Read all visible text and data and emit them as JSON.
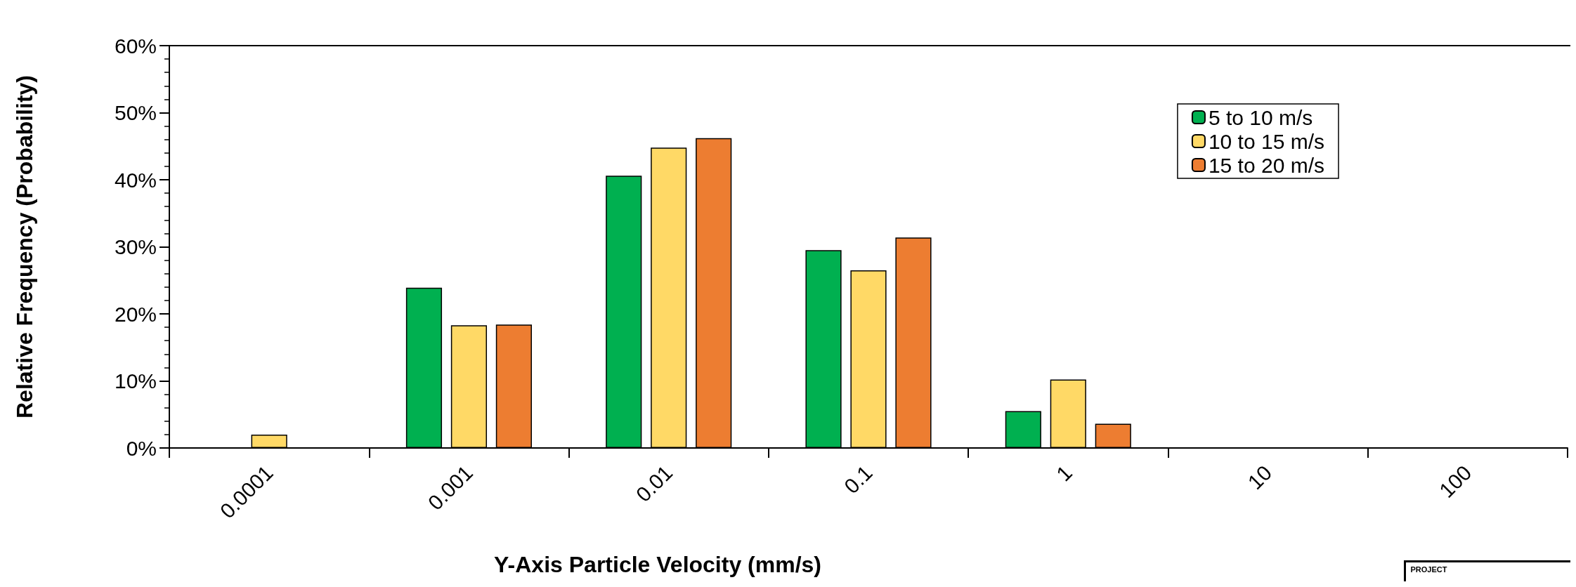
{
  "chart_data": {
    "type": "bar",
    "xlabel": "Y-Axis Particle Velocity (mm/s)",
    "ylabel": "Relative Frequency (Probability)",
    "categories": [
      "0.0001",
      "0.001",
      "0.01",
      "0.1",
      "1",
      "10",
      "100"
    ],
    "series": [
      {
        "name": "5 to 10 m/s",
        "color": "#00b050",
        "values": [
          null,
          23.9,
          40.6,
          29.5,
          5.5,
          null,
          null
        ]
      },
      {
        "name": "10 to 15 m/s",
        "color": "#ffd966",
        "values": [
          2.0,
          18.3,
          44.8,
          26.5,
          10.2,
          null,
          null
        ]
      },
      {
        "name": "15 to 20 m/s",
        "color": "#ed7d31",
        "values": [
          null,
          18.4,
          46.2,
          31.4,
          3.6,
          null,
          null
        ]
      }
    ],
    "ylim": [
      0,
      60
    ],
    "yticks": [
      {
        "value": 0,
        "label": "0%"
      },
      {
        "value": 10,
        "label": "10%"
      },
      {
        "value": 20,
        "label": "20%"
      },
      {
        "value": 30,
        "label": "30%"
      },
      {
        "value": 40,
        "label": "40%"
      },
      {
        "value": 50,
        "label": "50%"
      },
      {
        "value": 60,
        "label": "60%"
      }
    ],
    "grid": false,
    "legend": "top right",
    "annotations": [
      "PROJECT"
    ]
  }
}
